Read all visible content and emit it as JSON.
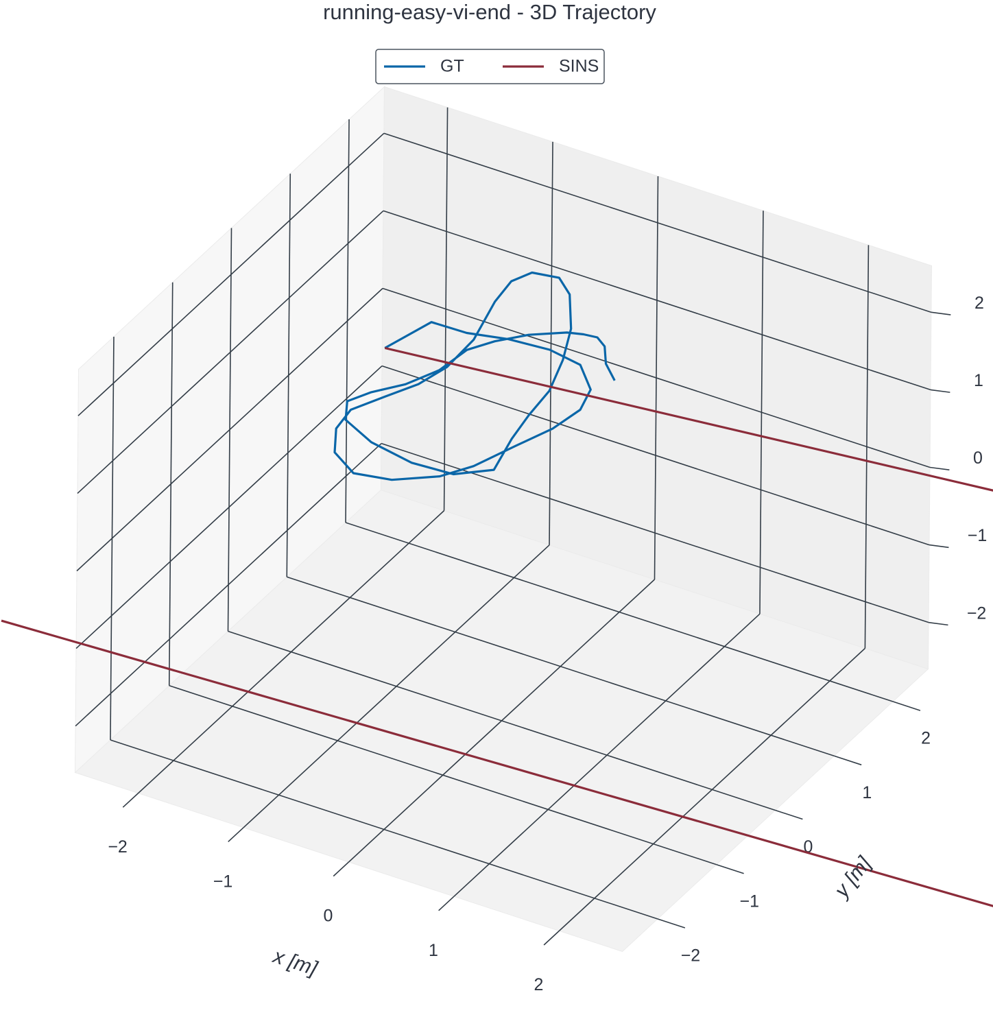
{
  "chart_data": {
    "type": "line3d",
    "title": "running-easy-vi-end - 3D Trajectory",
    "x_label": "x [m]",
    "y_label": "y [m]",
    "xlim": [
      -2.6,
      2.6
    ],
    "ylim": [
      -2.6,
      2.6
    ],
    "zlim": [
      -2.6,
      2.6
    ],
    "xticks": [
      {
        "value": -2,
        "label": "−2"
      },
      {
        "value": -1,
        "label": "−1"
      },
      0,
      1,
      2
    ],
    "yticks": [
      {
        "value": -2,
        "label": "−2"
      },
      {
        "value": -1,
        "label": "−1"
      },
      0,
      1,
      2
    ],
    "zticks": [
      {
        "value": -2,
        "label": "−2"
      },
      {
        "value": -1,
        "label": "−1"
      },
      0,
      1,
      2
    ],
    "grid": true,
    "legend": "upper center",
    "series": [
      {
        "name": "GT",
        "color": "#0a66a8",
        "x": [
          -1.43,
          -1.3,
          -0.97,
          -0.63,
          -0.26,
          0.07,
          0.33,
          0.41,
          0.36,
          0.23,
          0.09,
          -0.07,
          -0.38,
          -0.7,
          -0.99,
          -1.16,
          -1.2,
          -1.06,
          -0.92,
          -0.85,
          -0.87,
          -1.01,
          -1.05,
          -0.97,
          -0.74,
          -0.54,
          -0.27,
          -0.09,
          0.05,
          0.09,
          0.15,
          0.26,
          0.01,
          -0.37,
          -0.81,
          -1.16,
          -1.29,
          -1.19,
          -1.01,
          -0.88,
          -0.84,
          -0.71,
          -0.52,
          -0.27,
          -0.14,
          -0.02,
          0.1,
          0.24,
          0.43
        ],
        "y": [
          0.53,
          1.09,
          1.1,
          1.2,
          1.24,
          1.17,
          0.88,
          0.56,
          0.18,
          -0.22,
          -0.68,
          -0.97,
          -1.23,
          -1.31,
          -1.11,
          -0.78,
          -0.46,
          -0.13,
          0.19,
          0.55,
          1.04,
          1.65,
          2.0,
          2.21,
          2.26,
          2.08,
          1.62,
          1.16,
          0.68,
          0.26,
          -0.14,
          -0.64,
          -0.88,
          -0.91,
          -0.81,
          -0.62,
          -0.36,
          -0.13,
          0.13,
          0.47,
          0.87,
          1.11,
          1.35,
          1.55,
          1.6,
          1.62,
          1.53,
          1.3,
          1.11
        ],
        "z": [
          1.2,
          1.2,
          1.2,
          1.2,
          1.2,
          1.2,
          1.2,
          1.2,
          1.2,
          1.2,
          1.2,
          1.2,
          1.2,
          1.2,
          1.2,
          1.2,
          1.2,
          1.2,
          1.2,
          1.2,
          1.2,
          1.2,
          1.2,
          1.2,
          1.2,
          1.2,
          1.2,
          1.2,
          1.2,
          1.2,
          1.2,
          1.2,
          1.2,
          1.2,
          1.2,
          1.2,
          1.2,
          1.2,
          1.2,
          1.2,
          1.2,
          1.2,
          1.2,
          1.2,
          1.2,
          1.2,
          1.2,
          1.2,
          1.2
        ]
      },
      {
        "name": "SINS",
        "color": "#8b2c3a",
        "x": [
          -1.43,
          3.93,
          null,
          -2.05,
          7.09
        ],
        "y": [
          0.53,
          1.3,
          null,
          -4.88,
          -4.35
        ],
        "z": [
          1.2,
          1.2,
          null,
          1.2,
          1.2
        ]
      }
    ]
  }
}
